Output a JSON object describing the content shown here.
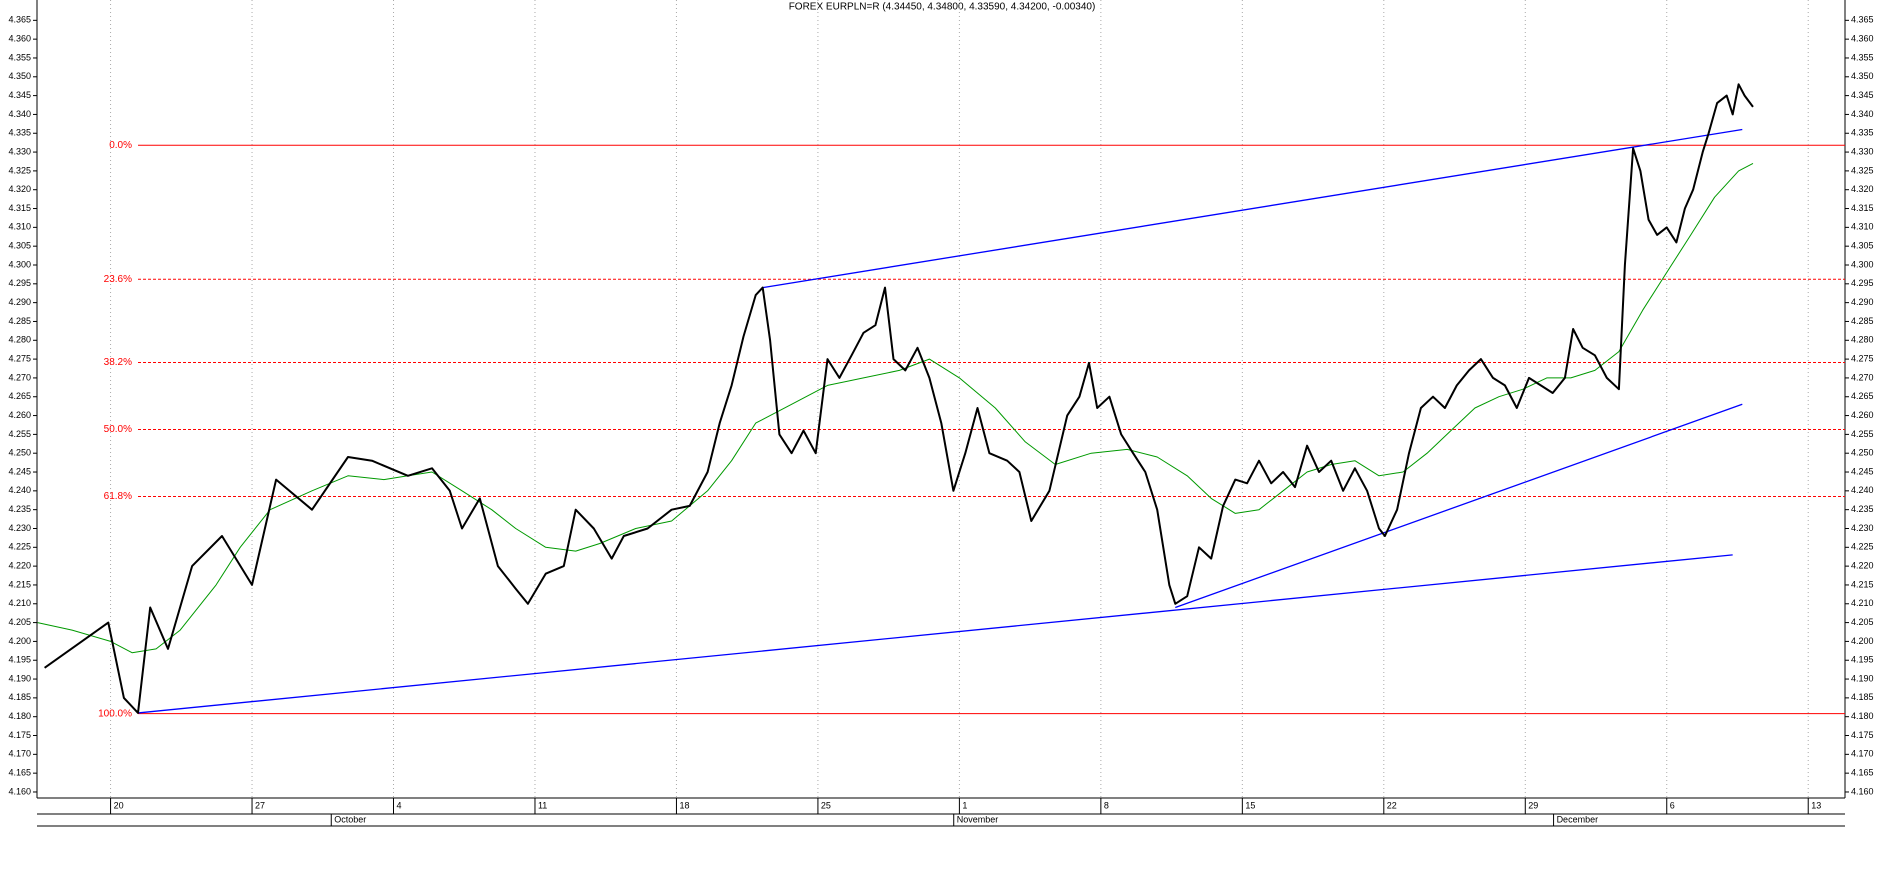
{
  "chart_data": {
    "type": "line",
    "title": "FOREX EURPLN=R (4.34450, 4.34800, 4.33590, 4.34200, -0.00340)",
    "xlim": [
      -2.6,
      61.3
    ],
    "ylim": [
      4.1584,
      4.3704
    ],
    "xticks": [
      {
        "value": 0,
        "label": "20"
      },
      {
        "value": 5,
        "label": "27"
      },
      {
        "value": 10,
        "label": "4"
      },
      {
        "value": 15,
        "label": "11"
      },
      {
        "value": 20,
        "label": "18"
      },
      {
        "value": 25,
        "label": "25"
      },
      {
        "value": 30,
        "label": "1"
      },
      {
        "value": 35,
        "label": "8"
      },
      {
        "value": 40,
        "label": "15"
      },
      {
        "value": 45,
        "label": "22"
      },
      {
        "value": 50,
        "label": "29"
      },
      {
        "value": 55,
        "label": "6"
      },
      {
        "value": 60,
        "label": "13"
      }
    ],
    "month_ticks": [
      {
        "value": 7.8,
        "label": "October"
      },
      {
        "value": 29.8,
        "label": "November"
      },
      {
        "value": 51,
        "label": "December"
      }
    ],
    "yticks": [
      {
        "value": 4.16,
        "label": "4.160"
      },
      {
        "value": 4.165,
        "label": "4.165"
      },
      {
        "value": 4.17,
        "label": "4.170"
      },
      {
        "value": 4.175,
        "label": "4.175"
      },
      {
        "value": 4.18,
        "label": "4.180"
      },
      {
        "value": 4.185,
        "label": "4.185"
      },
      {
        "value": 4.19,
        "label": "4.190"
      },
      {
        "value": 4.195,
        "label": "4.195"
      },
      {
        "value": 4.2,
        "label": "4.200"
      },
      {
        "value": 4.205,
        "label": "4.205"
      },
      {
        "value": 4.21,
        "label": "4.210"
      },
      {
        "value": 4.215,
        "label": "4.215"
      },
      {
        "value": 4.22,
        "label": "4.220"
      },
      {
        "value": 4.225,
        "label": "4.225"
      },
      {
        "value": 4.23,
        "label": "4.230"
      },
      {
        "value": 4.235,
        "label": "4.235"
      },
      {
        "value": 4.24,
        "label": "4.240"
      },
      {
        "value": 4.245,
        "label": "4.245"
      },
      {
        "value": 4.25,
        "label": "4.250"
      },
      {
        "value": 4.255,
        "label": "4.255"
      },
      {
        "value": 4.26,
        "label": "4.260"
      },
      {
        "value": 4.265,
        "label": "4.265"
      },
      {
        "value": 4.27,
        "label": "4.270"
      },
      {
        "value": 4.275,
        "label": "4.275"
      },
      {
        "value": 4.28,
        "label": "4.280"
      },
      {
        "value": 4.285,
        "label": "4.285"
      },
      {
        "value": 4.29,
        "label": "4.290"
      },
      {
        "value": 4.295,
        "label": "4.295"
      },
      {
        "value": 4.3,
        "label": "4.300"
      },
      {
        "value": 4.305,
        "label": "4.305"
      },
      {
        "value": 4.31,
        "label": "4.310"
      },
      {
        "value": 4.315,
        "label": "4.315"
      },
      {
        "value": 4.32,
        "label": "4.320"
      },
      {
        "value": 4.325,
        "label": "4.325"
      },
      {
        "value": 4.33,
        "label": "4.330"
      },
      {
        "value": 4.335,
        "label": "4.335"
      },
      {
        "value": 4.34,
        "label": "4.340"
      },
      {
        "value": 4.345,
        "label": "4.345"
      },
      {
        "value": 4.35,
        "label": "4.350"
      },
      {
        "value": 4.355,
        "label": "4.355"
      },
      {
        "value": 4.36,
        "label": "4.360"
      },
      {
        "value": 4.365,
        "label": "4.365"
      }
    ],
    "grid": true,
    "series": [
      {
        "color": "#000000",
        "x": [
          -2.33,
          -0.08,
          0.47,
          0.97,
          1.4,
          2.03,
          2.88,
          3.94,
          5.0,
          5.85,
          7.12,
          8.39,
          9.24,
          10.51,
          11.36,
          11.99,
          12.42,
          13.05,
          13.69,
          14.32,
          14.75,
          15.38,
          16.02,
          16.44,
          17.08,
          17.71,
          18.14,
          18.98,
          19.83,
          20.47,
          21.1,
          21.53,
          21.95,
          22.37,
          22.8,
          23.05,
          23.31,
          23.64,
          24.07,
          24.49,
          24.92,
          25.34,
          25.76,
          26.19,
          26.61,
          27.03,
          27.37,
          27.67,
          28.09,
          28.52,
          28.94,
          29.36,
          29.79,
          30.21,
          30.64,
          31.06,
          31.69,
          32.12,
          32.54,
          33.18,
          33.81,
          34.24,
          34.58,
          34.87,
          35.3,
          35.72,
          36.14,
          36.57,
          36.99,
          37.42,
          37.63,
          38.05,
          38.47,
          38.9,
          39.32,
          39.75,
          40.17,
          40.59,
          41.02,
          41.44,
          41.86,
          42.29,
          42.71,
          43.14,
          43.56,
          43.98,
          44.41,
          44.83,
          45.04,
          45.47,
          45.89,
          46.31,
          46.74,
          47.16,
          47.58,
          48.01,
          48.43,
          48.86,
          49.28,
          49.7,
          50.13,
          50.55,
          50.97,
          51.4,
          51.69,
          52.03,
          52.46,
          52.88,
          53.31,
          53.52,
          53.81,
          54.07,
          54.36,
          54.66,
          55.0,
          55.34,
          55.64,
          55.93,
          56.27,
          56.48,
          56.78,
          57.12,
          57.33,
          57.54,
          57.75,
          58.05
        ],
        "values": [
          4.193,
          4.205,
          4.185,
          4.181,
          4.209,
          4.198,
          4.22,
          4.228,
          4.215,
          4.243,
          4.235,
          4.249,
          4.248,
          4.244,
          4.246,
          4.24,
          4.23,
          4.238,
          4.22,
          4.214,
          4.21,
          4.218,
          4.22,
          4.235,
          4.23,
          4.222,
          4.228,
          4.23,
          4.235,
          4.236,
          4.245,
          4.258,
          4.268,
          4.281,
          4.292,
          4.294,
          4.28,
          4.255,
          4.25,
          4.256,
          4.25,
          4.275,
          4.27,
          4.276,
          4.282,
          4.284,
          4.294,
          4.275,
          4.272,
          4.278,
          4.27,
          4.258,
          4.24,
          4.25,
          4.262,
          4.25,
          4.248,
          4.245,
          4.232,
          4.24,
          4.26,
          4.265,
          4.274,
          4.262,
          4.265,
          4.255,
          4.25,
          4.245,
          4.235,
          4.215,
          4.21,
          4.212,
          4.225,
          4.222,
          4.236,
          4.243,
          4.242,
          4.248,
          4.242,
          4.245,
          4.241,
          4.252,
          4.245,
          4.248,
          4.24,
          4.246,
          4.24,
          4.23,
          4.228,
          4.235,
          4.25,
          4.262,
          4.265,
          4.262,
          4.268,
          4.272,
          4.275,
          4.27,
          4.268,
          4.262,
          4.27,
          4.268,
          4.266,
          4.27,
          4.283,
          4.278,
          4.276,
          4.27,
          4.267,
          4.3,
          4.331,
          4.325,
          4.312,
          4.308,
          4.31,
          4.306,
          4.315,
          4.32,
          4.33,
          4.335,
          4.343,
          4.345,
          4.34,
          4.348,
          4.345,
          4.342
        ]
      },
      {
        "color": "#009900",
        "x": [
          -2.58,
          -1.36,
          0,
          0.76,
          1.61,
          2.46,
          3.73,
          4.58,
          5.64,
          7.12,
          8.39,
          9.66,
          10.51,
          11.36,
          12.42,
          13.47,
          14.32,
          15.38,
          16.44,
          17.29,
          18.56,
          19.83,
          21.1,
          21.95,
          22.8,
          24.07,
          25.34,
          26.61,
          27.88,
          28.94,
          30.0,
          31.27,
          32.33,
          33.39,
          34.66,
          35.93,
          36.99,
          38.05,
          38.9,
          39.75,
          40.59,
          41.44,
          42.29,
          43.14,
          43.98,
          44.83,
          45.68,
          46.53,
          47.37,
          48.22,
          49.07,
          49.92,
          50.76,
          51.61,
          52.46,
          53.31,
          54.15,
          55.0,
          55.85,
          56.69,
          57.54,
          58.05
        ],
        "values": [
          4.205,
          4.203,
          4.2,
          4.197,
          4.198,
          4.203,
          4.215,
          4.225,
          4.235,
          4.24,
          4.244,
          4.243,
          4.244,
          4.245,
          4.24,
          4.235,
          4.23,
          4.225,
          4.224,
          4.226,
          4.23,
          4.232,
          4.24,
          4.248,
          4.258,
          4.263,
          4.268,
          4.27,
          4.272,
          4.275,
          4.27,
          4.262,
          4.253,
          4.247,
          4.25,
          4.251,
          4.249,
          4.244,
          4.238,
          4.234,
          4.235,
          4.24,
          4.245,
          4.247,
          4.248,
          4.244,
          4.245,
          4.25,
          4.256,
          4.262,
          4.265,
          4.267,
          4.27,
          4.27,
          4.272,
          4.277,
          4.288,
          4.298,
          4.308,
          4.318,
          4.325,
          4.327
        ]
      }
    ],
    "trendlines": {
      "color": "#0000ff",
      "lines": [
        {
          "x": [
            0.97,
            57.33
          ],
          "y": [
            4.181,
            4.223
          ]
        },
        {
          "x": [
            37.63,
            57.67
          ],
          "y": [
            4.209,
            4.263
          ]
        },
        {
          "x": [
            23.05,
            57.67
          ],
          "y": [
            4.294,
            4.336
          ]
        }
      ]
    },
    "fibonacci": {
      "color": "#ff0000",
      "start_x": 0.97,
      "levels": [
        {
          "label": "0.0%",
          "price": 4.3318,
          "dashed": false
        },
        {
          "label": "23.6%",
          "price": 4.2962,
          "dashed": true
        },
        {
          "label": "38.2%",
          "price": 4.2741,
          "dashed": true
        },
        {
          "label": "50.0%",
          "price": 4.2563,
          "dashed": true
        },
        {
          "label": "61.8%",
          "price": 4.2385,
          "dashed": true
        },
        {
          "label": "100.0%",
          "price": 4.1808,
          "dashed": false
        }
      ]
    }
  }
}
